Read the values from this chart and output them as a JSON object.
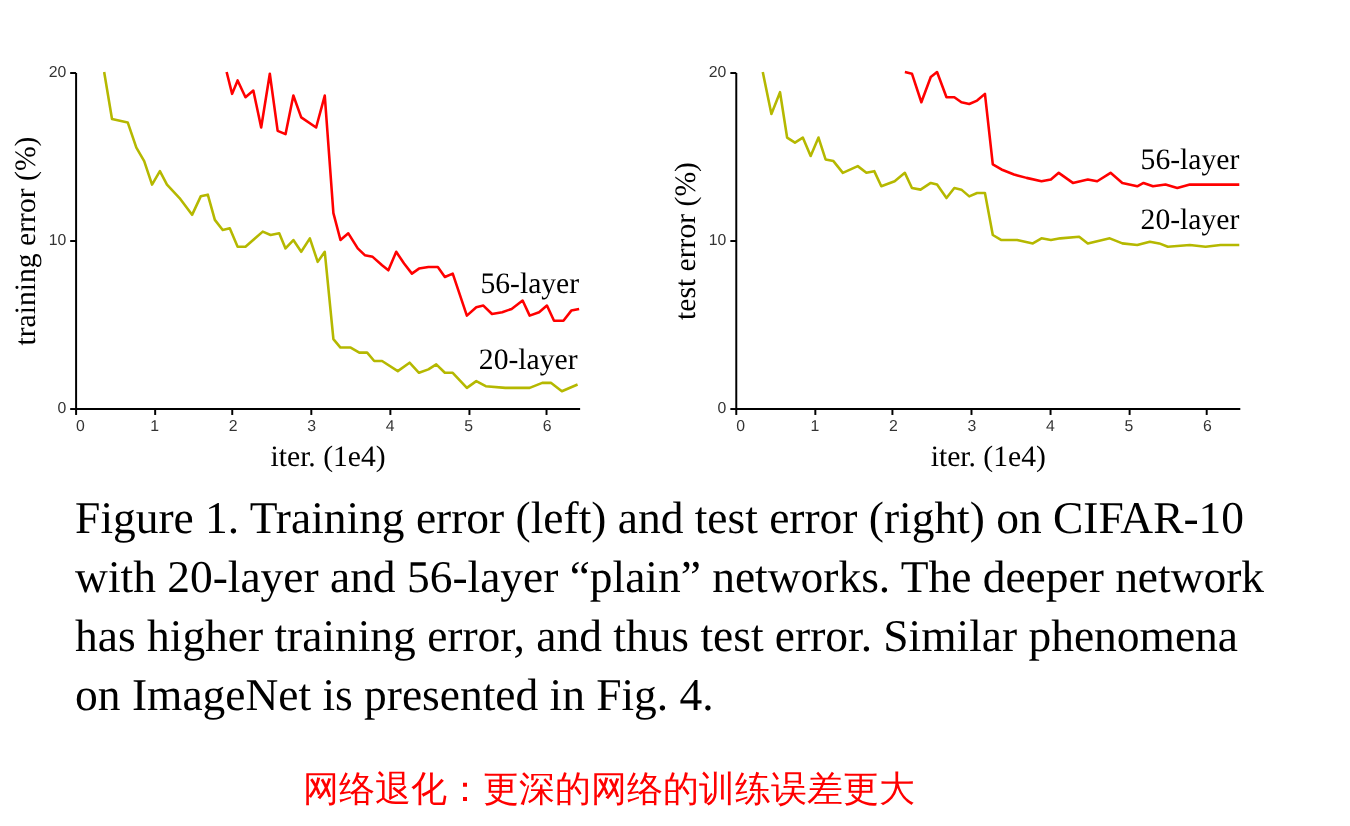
{
  "chart_data": [
    {
      "type": "line",
      "xlabel": "iter. (1e4)",
      "ylabel": "training error (%)",
      "xlim": [
        0,
        6.42
      ],
      "xticks": [
        0,
        1,
        2,
        3,
        4,
        5,
        6
      ],
      "ylim": [
        0,
        20
      ],
      "yticks": [
        0,
        10,
        20
      ],
      "legend": false,
      "grid": false,
      "series": [
        {
          "name": "56-layer",
          "color": "#ff0000",
          "x": [
            1.93,
            2.0,
            2.07,
            2.17,
            2.27,
            2.37,
            2.48,
            2.58,
            2.68,
            2.78,
            2.88,
            3.07,
            3.18,
            3.29,
            3.38,
            3.48,
            3.6,
            3.69,
            3.79,
            3.91,
            3.99,
            4.09,
            4.19,
            4.29,
            4.38,
            4.5,
            4.62,
            4.71,
            4.81,
            4.99,
            5.11,
            5.2,
            5.31,
            5.44,
            5.56,
            5.7,
            5.79,
            5.91,
            6.01,
            6.1,
            6.22,
            6.32,
            6.42
          ],
          "values": [
            20,
            18.7,
            19.5,
            18.5,
            18.9,
            16.7,
            19.9,
            16.5,
            16.3,
            18.6,
            17.3,
            16.7,
            18.6,
            11.6,
            10.0,
            10.4,
            9.5,
            9.1,
            9.0,
            8.5,
            8.2,
            9.3,
            8.6,
            8.0,
            8.3,
            8.4,
            8.4,
            7.8,
            8.0,
            5.5,
            6.0,
            6.1,
            5.6,
            5.7,
            5.9,
            6.4,
            5.5,
            5.7,
            6.1,
            5.2,
            5.2,
            5.8,
            5.9
          ]
        },
        {
          "name": "20-layer",
          "color": "#b5b800",
          "x": [
            0.37,
            0.47,
            0.67,
            0.78,
            0.88,
            0.98,
            1.08,
            1.17,
            1.33,
            1.49,
            1.6,
            1.69,
            1.78,
            1.88,
            1.97,
            2.07,
            2.17,
            2.39,
            2.49,
            2.6,
            2.68,
            2.78,
            2.88,
            2.99,
            3.09,
            3.18,
            3.29,
            3.38,
            3.51,
            3.62,
            3.72,
            3.81,
            3.91,
            4.11,
            4.26,
            4.38,
            4.5,
            4.6,
            4.71,
            4.81,
            4.99,
            5.11,
            5.23,
            5.48,
            5.63,
            5.79,
            5.95,
            6.06,
            6.2,
            6.4
          ],
          "values": [
            20,
            17.2,
            17.0,
            15.5,
            14.7,
            13.3,
            14.1,
            13.3,
            12.5,
            11.5,
            12.6,
            12.7,
            11.2,
            10.6,
            10.7,
            9.6,
            9.6,
            10.5,
            10.3,
            10.4,
            9.5,
            10.0,
            9.3,
            10.1,
            8.7,
            9.3,
            4.1,
            3.6,
            3.6,
            3.3,
            3.3,
            2.8,
            2.8,
            2.2,
            2.7,
            2.1,
            2.3,
            2.6,
            2.1,
            2.1,
            1.2,
            1.6,
            1.3,
            1.2,
            1.2,
            1.2,
            1.5,
            1.5,
            1.0,
            1.4
          ]
        }
      ]
    },
    {
      "type": "line",
      "xlabel": "iter. (1e4)",
      "ylabel": "test error (%)",
      "xlim": [
        0,
        6.42
      ],
      "xticks": [
        0,
        1,
        2,
        3,
        4,
        5,
        6
      ],
      "ylim": [
        0,
        20
      ],
      "yticks": [
        0,
        10,
        20
      ],
      "legend": false,
      "grid": false,
      "series": [
        {
          "name": "56-layer",
          "color": "#ff0000",
          "x": [
            2.16,
            2.25,
            2.37,
            2.49,
            2.57,
            2.69,
            2.79,
            2.88,
            2.98,
            3.08,
            3.18,
            3.28,
            3.39,
            3.55,
            3.71,
            3.9,
            4.02,
            4.12,
            4.3,
            4.49,
            4.61,
            4.78,
            4.93,
            5.12,
            5.2,
            5.32,
            5.48,
            5.63,
            5.79,
            6.03,
            6.42
          ],
          "values": [
            20,
            19.9,
            18.2,
            19.7,
            20.0,
            18.5,
            18.5,
            18.2,
            18.1,
            18.3,
            18.7,
            14.5,
            14.2,
            13.9,
            13.7,
            13.5,
            13.6,
            14.0,
            13.4,
            13.6,
            13.5,
            14.0,
            13.4,
            13.2,
            13.4,
            13.2,
            13.3,
            13.1,
            13.3,
            13.3,
            13.3
          ]
        },
        {
          "name": "20-layer",
          "color": "#b5b800",
          "x": [
            0.35,
            0.46,
            0.57,
            0.66,
            0.76,
            0.86,
            0.96,
            1.06,
            1.15,
            1.25,
            1.37,
            1.56,
            1.67,
            1.77,
            1.86,
            2.03,
            2.16,
            2.25,
            2.36,
            2.49,
            2.57,
            2.69,
            2.79,
            2.88,
            2.98,
            3.08,
            3.18,
            3.28,
            3.39,
            3.59,
            3.79,
            3.9,
            4.02,
            4.14,
            4.38,
            4.49,
            4.77,
            4.93,
            5.12,
            5.28,
            5.4,
            5.51,
            5.79,
            5.99,
            6.18,
            6.42
          ],
          "values": [
            20,
            17.5,
            18.8,
            16.1,
            15.8,
            16.1,
            15.0,
            16.1,
            14.8,
            14.7,
            14.0,
            14.4,
            14.0,
            14.1,
            13.2,
            13.5,
            14.0,
            13.1,
            13.0,
            13.4,
            13.3,
            12.5,
            13.1,
            13.0,
            12.6,
            12.8,
            12.8,
            10.3,
            10.0,
            10.0,
            9.8,
            10.1,
            10.0,
            10.1,
            10.2,
            9.8,
            10.1,
            9.8,
            9.7,
            9.9,
            9.8,
            9.6,
            9.7,
            9.6,
            9.7,
            9.7
          ]
        }
      ]
    },
    {
      "type": "other",
      "annotations": [
        "Figure 1. Training error (left) and test error (right) on CIFAR-10",
        "with 20-layer and 56-layer “plain” networks. The deeper network",
        "has higher training error, and thus test error.  Similar phenomena",
        "on ImageNet is presented in Fig. 4.",
        "网络退化：更深的网络的训练误差更大"
      ]
    }
  ]
}
